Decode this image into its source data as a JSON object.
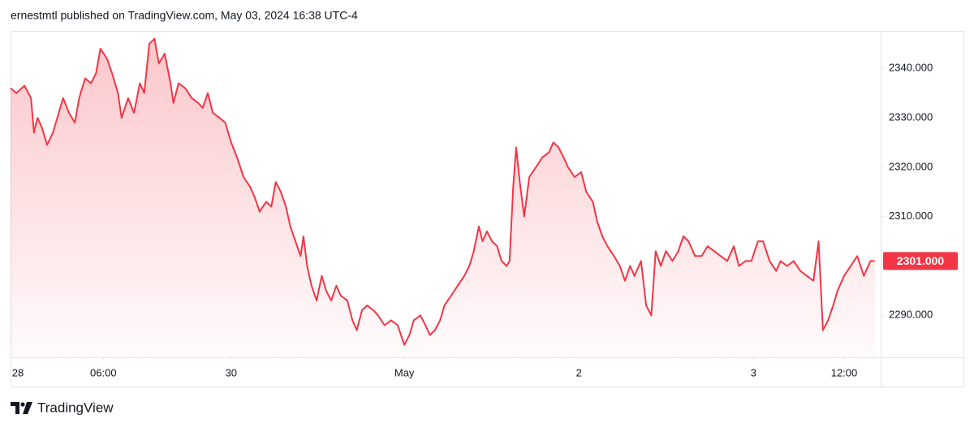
{
  "header": "ernestmtl published on TradingView.com, May 03, 2024 16:38 UTC-4",
  "footer": "TradingView",
  "chart_data": {
    "type": "area",
    "xlim": [
      0,
      119.1
    ],
    "xticks": [
      {
        "value": 1.0,
        "label": "28"
      },
      {
        "value": 12.7,
        "label": "06:00"
      },
      {
        "value": 30.2,
        "label": "30"
      },
      {
        "value": 53.9,
        "label": "May"
      },
      {
        "value": 77.8,
        "label": "2"
      },
      {
        "value": 101.7,
        "label": "3"
      },
      {
        "value": 114.1,
        "label": "12:00"
      }
    ],
    "ylim": [
      2281.5,
      2347.6
    ],
    "yticks": [
      {
        "value": 2290,
        "label": "2290.000"
      },
      {
        "value": 2310,
        "label": "2310.000"
      },
      {
        "value": 2320,
        "label": "2320.000"
      },
      {
        "value": 2330,
        "label": "2330.000"
      },
      {
        "value": 2340,
        "label": "2340.000"
      }
    ],
    "last_price": {
      "value": 2301,
      "label": "2301.000"
    },
    "color": "#f23645",
    "x": [
      0,
      0.8,
      1.9,
      2.8,
      3.2,
      3.7,
      4.3,
      5,
      5.8,
      6.6,
      7.2,
      8,
      8.8,
      9.4,
      10.2,
      11,
      11.7,
      12.3,
      13.2,
      13.9,
      14.7,
      15.2,
      16.1,
      16.9,
      17.7,
      18.3,
      19,
      19.7,
      20.3,
      21.1,
      21.9,
      22.3,
      23,
      23.9,
      24.8,
      25.7,
      26.3,
      27,
      27.7,
      28.6,
      29.4,
      30.2,
      31,
      31.9,
      32.8,
      33.4,
      34.1,
      35,
      35.7,
      36.3,
      37,
      37.7,
      38.3,
      39,
      39.7,
      40.1,
      40.6,
      41.2,
      41.9,
      42.6,
      43.2,
      43.9,
      44.6,
      45.2,
      46.1,
      46.8,
      47.4,
      48.1,
      48.8,
      49.7,
      50.3,
      51.2,
      52.1,
      53,
      53.9,
      54.6,
      55.2,
      56.1,
      56.8,
      57.4,
      58.1,
      58.8,
      59.4,
      60.3,
      61.2,
      62.1,
      62.8,
      63.4,
      64.1,
      64.6,
      65.2,
      65.9,
      66.6,
      67.2,
      67.9,
      68.3,
      68.8,
      69.2,
      69.7,
      70.3,
      71,
      71.9,
      72.8,
      73.7,
      74.3,
      75,
      75.7,
      76.3,
      77.2,
      78.1,
      78.8,
      79.7,
      80.3,
      81,
      81.7,
      82.6,
      83.4,
      84.1,
      84.8,
      85.4,
      86.3,
      87,
      87.7,
      88.3,
      89,
      89.7,
      90.6,
      91.4,
      92.1,
      92.8,
      93.7,
      94.6,
      95.4,
      96.3,
      97.2,
      98.1,
      99,
      99.7,
      100.6,
      101.4,
      102.3,
      103,
      103.9,
      104.8,
      105.4,
      106.3,
      107.2,
      108.1,
      109,
      109.9,
      110.6,
      111.2,
      111.9,
      112.6,
      113.2,
      114.1,
      115,
      115.9,
      116.8,
      117.7,
      118.3
    ],
    "values": [
      2336,
      2335,
      2336.5,
      2334,
      2327,
      2330,
      2328,
      2324.5,
      2327,
      2331,
      2334,
      2331,
      2329,
      2334,
      2338,
      2337,
      2339,
      2344,
      2342,
      2339,
      2335,
      2330,
      2334,
      2331,
      2337,
      2335,
      2345,
      2346,
      2341,
      2343,
      2337,
      2333,
      2337,
      2336,
      2334,
      2333,
      2332,
      2335,
      2331,
      2330,
      2329,
      2325,
      2322,
      2318,
      2316,
      2314,
      2311,
      2313,
      2312,
      2317,
      2315,
      2312,
      2308,
      2305,
      2302,
      2306,
      2300,
      2296,
      2293,
      2298,
      2295,
      2293,
      2296,
      2294,
      2293,
      2289,
      2287,
      2291,
      2292,
      2291,
      2290,
      2288,
      2289,
      2288,
      2284,
      2286,
      2289,
      2290,
      2288,
      2286,
      2287,
      2289,
      2292,
      2294,
      2296,
      2298,
      2300,
      2303,
      2308,
      2305,
      2307,
      2305,
      2304,
      2301,
      2300,
      2301,
      2316,
      2324,
      2317,
      2310,
      2318,
      2320,
      2322,
      2323,
      2325,
      2324,
      2322,
      2320,
      2318,
      2319,
      2315,
      2313,
      2309,
      2306,
      2304,
      2302,
      2300,
      2297,
      2300,
      2298,
      2301,
      2292,
      2290,
      2303,
      2300,
      2303,
      2301,
      2303,
      2306,
      2305,
      2302,
      2302,
      2304,
      2303,
      2302,
      2301,
      2304,
      2300,
      2301,
      2301,
      2305,
      2305,
      2301,
      2299,
      2301,
      2300,
      2301,
      2299,
      2298,
      2297,
      2305,
      2287,
      2289,
      2292,
      2295,
      2298,
      2300,
      2302,
      2298,
      2301,
      2301
    ]
  }
}
